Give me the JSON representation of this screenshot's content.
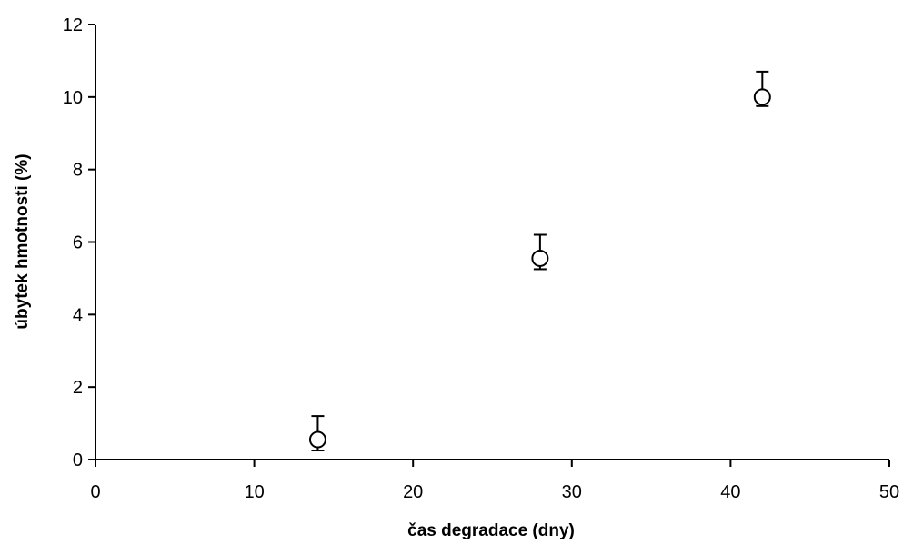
{
  "chart_data": {
    "type": "scatter",
    "title": "",
    "xlabel": "čas degradace (dny)",
    "ylabel": "úbytek hmotnosti (%)",
    "xlim": [
      0,
      50
    ],
    "ylim": [
      0,
      12
    ],
    "x_ticks": [
      0,
      10,
      20,
      30,
      40,
      50
    ],
    "y_ticks": [
      0,
      2,
      4,
      6,
      8,
      10,
      12
    ],
    "grid": false,
    "legend": "none",
    "marker": "open-circle",
    "series": [
      {
        "points": [
          {
            "x": 14,
            "y": 0.55,
            "err_up": 0.65,
            "err_down": 0.3
          },
          {
            "x": 28,
            "y": 5.55,
            "err_up": 0.65,
            "err_down": 0.3
          },
          {
            "x": 42,
            "y": 10.0,
            "err_up": 0.7,
            "err_down": 0.25
          }
        ]
      }
    ]
  }
}
